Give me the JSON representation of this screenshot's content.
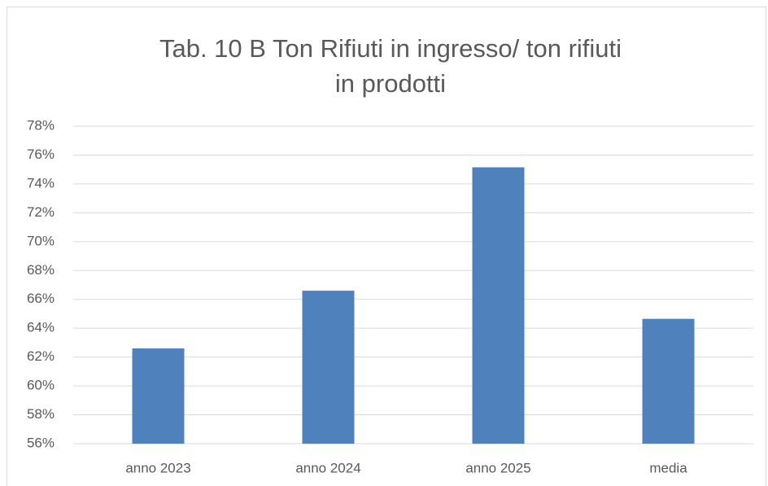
{
  "chart_data": {
    "type": "bar",
    "title": "Tab. 10 B Ton Rifiuti in ingresso/ ton rifiuti in prodotti",
    "categories": [
      "anno 2023",
      "anno 2024",
      "anno 2025",
      "media"
    ],
    "values": [
      62.6,
      66.6,
      75.15,
      64.65
    ],
    "color": "#4f81bd",
    "ylim": [
      56,
      78
    ],
    "yticks": [
      {
        "value": 56,
        "label": "56%"
      },
      {
        "value": 58,
        "label": "58%"
      },
      {
        "value": 60,
        "label": "60%"
      },
      {
        "value": 62,
        "label": "62%"
      },
      {
        "value": 64,
        "label": "64%"
      },
      {
        "value": 66,
        "label": "66%"
      },
      {
        "value": 68,
        "label": "68%"
      },
      {
        "value": 70,
        "label": "70%"
      },
      {
        "value": 72,
        "label": "72%"
      },
      {
        "value": 74,
        "label": "74%"
      },
      {
        "value": 76,
        "label": "76%"
      },
      {
        "value": 78,
        "label": "78%"
      }
    ],
    "grid": true
  }
}
